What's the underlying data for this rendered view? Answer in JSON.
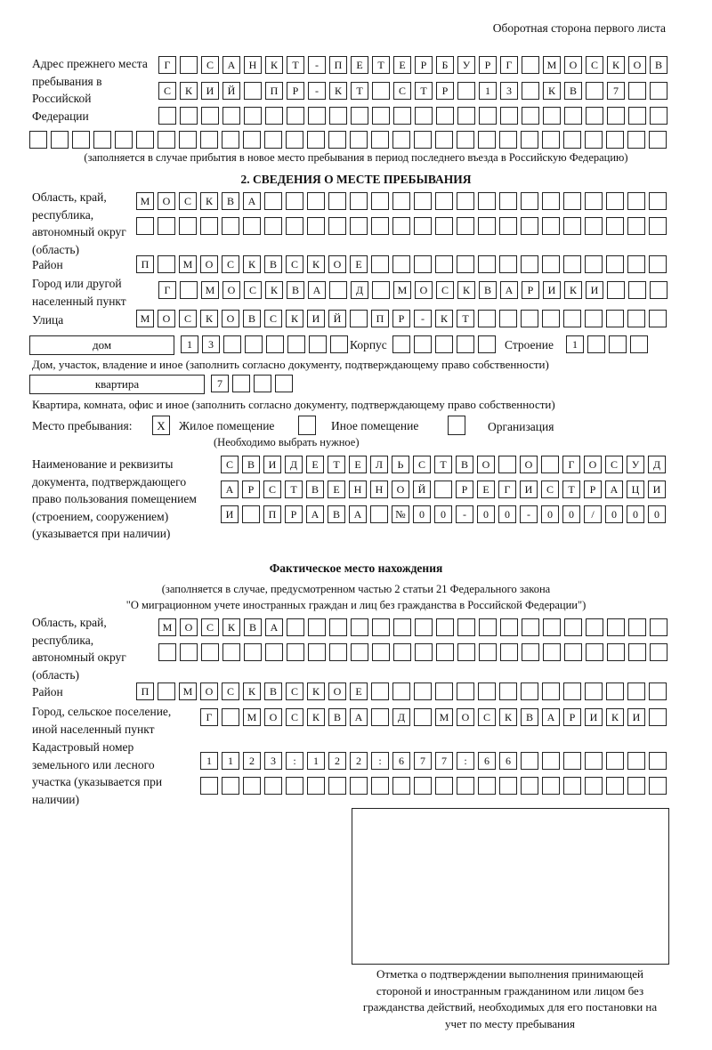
{
  "header": {
    "page_side": "Оборотная сторона первого листа"
  },
  "previous_address": {
    "label": "Адрес прежнего места пребывания в Российской Федерации",
    "rows": [
      "Г САНКТ-ПЕТЕРБУРГ МОСКОВ",
      "СКИЙ ПР-КТ СТР 13 КВ 7",
      "",
      ""
    ],
    "note": "(заполняется в случае прибытия в новое место пребывания в период последнего въезда в Российскую Федерацию)"
  },
  "section2": {
    "title": "2. СВЕДЕНИЯ О МЕСТЕ ПРЕБЫВАНИЯ",
    "region_label": "Область, край, республика, автономный округ (область)",
    "region_rows": [
      "МОСКВА",
      ""
    ],
    "district_label": "Район",
    "district": "П МОСКВСКОЕ",
    "city_label": "Город или другой населенный пункт",
    "city": "Г МОСКВА Д МОСКВАРИКИ",
    "street_label": "Улица",
    "street": "МОСКОВСКИЙ ПР-КТ",
    "house_type": "дом",
    "house_number": "13",
    "korpus_label": "Корпус",
    "korpus": "",
    "building_label": "Строение",
    "building": "1",
    "house_note": "Дом, участок, владение и иное (заполнить согласно документу, подтверждающему право собственности)",
    "apartment_type": "квартира",
    "apartment_number": "7",
    "apartment_note": "Квартира, комната, офис и иное (заполнить согласно документу, подтверждающему право собственности)",
    "stay_place_label": "Место пребывания:",
    "stay_options": [
      {
        "label": "Жилое помещение",
        "mark": "Х"
      },
      {
        "label": "Иное помещение",
        "mark": ""
      },
      {
        "label": "Организация",
        "mark": ""
      }
    ],
    "stay_note": "(Необходимо выбрать нужное)",
    "document_label": "Наименование и реквизиты документа, подтверждающего право пользования помещением (строением, сооружением) (указывается при наличии)",
    "document_rows": [
      "СВИДЕТЕЛЬСТВО О ГОСУД",
      "АРСТВЕННОЙ РЕГИСТРАЦИ",
      "И ПРАВА №00-00-00/000"
    ]
  },
  "actual": {
    "title": "Фактическое место нахождения",
    "note_line1": "(заполняется в случае, предусмотренном частью 2 статьи 21 Федерального закона",
    "note_line2": "\"О миграционном учете иностранных граждан и лиц без гражданства в Российской Федерации\")",
    "region_label": "Область, край, республика, автономный округ (область)",
    "region_rows": [
      "МОСКВА",
      ""
    ],
    "district_label": "Район",
    "district": "П МОСКВСКОЕ",
    "city_label": "Город, сельское поселение, иной населенный пункт",
    "city": "Г МОСКВА Д МОСКВАРИКИ",
    "cadastral_label": "Кадастровый номер земельного или лесного участка (указывается при наличии)",
    "cadastral_rows": [
      "1123:122:677:66",
      ""
    ]
  },
  "confirmation": {
    "caption": "Отметка о подтверждении выполнения принимающей стороной и иностранным гражданином или лицом без гражданства действий, необходимых для его постановки на учет по месту пребывания"
  }
}
